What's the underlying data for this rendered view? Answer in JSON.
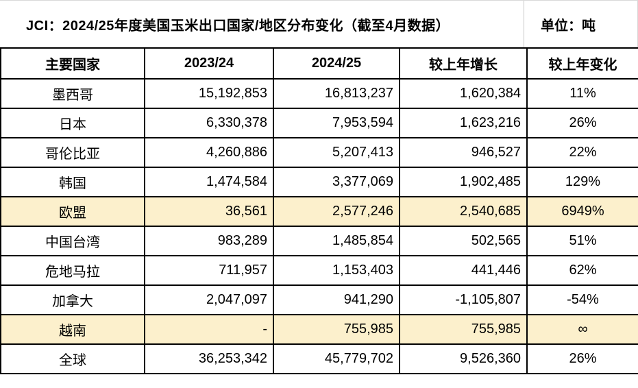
{
  "title": "JCI：2024/25年度美国玉米出口国家/地区分布变化（截至4月数据）",
  "unit_label": "单位：吨",
  "colors": {
    "highlight_row": "#FCF0CC",
    "table_border": "#000000",
    "gridline": "#D9D9D9",
    "text": "#000000",
    "background": "#FFFFFF"
  },
  "chart_data": {
    "type": "table",
    "title": "JCI：2024/25年度美国玉米出口国家/地区分布变化（截至4月数据）",
    "unit": "吨",
    "columns": [
      "主要国家",
      "2023/24",
      "2024/25",
      "较上年增长",
      "较上年变化"
    ],
    "rows": [
      {
        "country": "墨西哥",
        "y2023_24": "15,192,853",
        "y2024_25": "16,813,237",
        "yoy_increase": "1,620,384",
        "yoy_change": "11%",
        "highlight": false
      },
      {
        "country": "日本",
        "y2023_24": "6,330,378",
        "y2024_25": "7,953,594",
        "yoy_increase": "1,623,216",
        "yoy_change": "26%",
        "highlight": false
      },
      {
        "country": "哥伦比亚",
        "y2023_24": "4,260,886",
        "y2024_25": "5,207,413",
        "yoy_increase": "946,527",
        "yoy_change": "22%",
        "highlight": false
      },
      {
        "country": "韩国",
        "y2023_24": "1,474,584",
        "y2024_25": "3,377,069",
        "yoy_increase": "1,902,485",
        "yoy_change": "129%",
        "highlight": false
      },
      {
        "country": "欧盟",
        "y2023_24": "36,561",
        "y2024_25": "2,577,246",
        "yoy_increase": "2,540,685",
        "yoy_change": "6949%",
        "highlight": true
      },
      {
        "country": "中国台湾",
        "y2023_24": "983,289",
        "y2024_25": "1,485,854",
        "yoy_increase": "502,565",
        "yoy_change": "51%",
        "highlight": false
      },
      {
        "country": "危地马拉",
        "y2023_24": "711,957",
        "y2024_25": "1,153,403",
        "yoy_increase": "441,446",
        "yoy_change": "62%",
        "highlight": false
      },
      {
        "country": "加拿大",
        "y2023_24": "2,047,097",
        "y2024_25": "941,290",
        "yoy_increase": "-1,105,807",
        "yoy_change": "-54%",
        "highlight": false
      },
      {
        "country": "越南",
        "y2023_24": "-",
        "y2024_25": "755,985",
        "yoy_increase": "755,985",
        "yoy_change": "∞",
        "highlight": true
      },
      {
        "country": "全球",
        "y2023_24": "36,253,342",
        "y2024_25": "45,779,702",
        "yoy_increase": "9,526,360",
        "yoy_change": "26%",
        "highlight": false
      }
    ]
  }
}
